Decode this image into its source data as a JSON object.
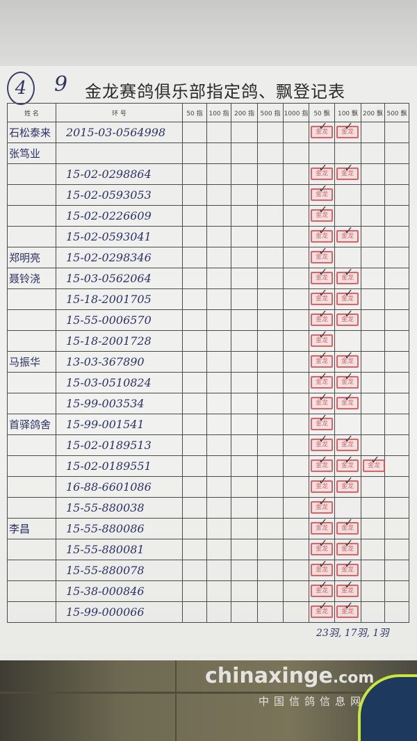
{
  "document": {
    "circled_number": "4",
    "page_number": "9",
    "title": "金龙赛鸽俱乐部指定鸽、飘登记表"
  },
  "table": {
    "headers": [
      "姓 名",
      "环 号",
      "50 指",
      "100 指",
      "200 指",
      "500 指",
      "1000 指",
      "50 飘",
      "100 飘",
      "200 飘",
      "500 飘"
    ],
    "stamp_text": "金龙",
    "stamp_color": "#e0474f",
    "rows": [
      {
        "name": "石松泰来",
        "ring": "2015-03-0564998",
        "stamps": [
          7,
          8
        ]
      },
      {
        "name": "张笃业",
        "ring": "",
        "stamps": []
      },
      {
        "name": "",
        "ring": "15-02-0298864",
        "stamps": [
          7,
          8
        ]
      },
      {
        "name": "",
        "ring": "15-02-0593053",
        "stamps": [
          7
        ]
      },
      {
        "name": "",
        "ring": "15-02-0226609",
        "stamps": [
          7
        ]
      },
      {
        "name": "",
        "ring": "15-02-0593041",
        "stamps": [
          7,
          8
        ]
      },
      {
        "name": "郑明亮",
        "ring": "15-02-0298346",
        "stamps": [
          7
        ]
      },
      {
        "name": "聂铃浇",
        "ring": "15-03-0562064",
        "stamps": [
          7,
          8
        ]
      },
      {
        "name": "",
        "ring": "15-18-2001705",
        "stamps": [
          7,
          8
        ]
      },
      {
        "name": "",
        "ring": "15-55-0006570",
        "stamps": [
          7,
          8
        ]
      },
      {
        "name": "",
        "ring": "15-18-2001728",
        "stamps": [
          7
        ]
      },
      {
        "name": "马振华",
        "ring": "13-03-367890",
        "stamps": [
          7,
          8
        ]
      },
      {
        "name": "",
        "ring": "15-03-0510824",
        "stamps": [
          7,
          8
        ]
      },
      {
        "name": "",
        "ring": "15-99-003534",
        "stamps": [
          7,
          8
        ]
      },
      {
        "name": "首驿鸽舍",
        "ring": "15-99-001541",
        "stamps": [
          7
        ]
      },
      {
        "name": "",
        "ring": "15-02-0189513",
        "stamps": [
          7,
          8
        ]
      },
      {
        "name": "",
        "ring": "15-02-0189551",
        "stamps": [
          7,
          8,
          9
        ]
      },
      {
        "name": "",
        "ring": "16-88-6601086",
        "stamps": [
          7,
          8
        ]
      },
      {
        "name": "",
        "ring": "15-55-880038",
        "stamps": [
          7
        ]
      },
      {
        "name": "李昌",
        "ring": "15-55-880086",
        "stamps": [
          7,
          8
        ]
      },
      {
        "name": "",
        "ring": "15-55-880081",
        "stamps": [
          7,
          8
        ]
      },
      {
        "name": "",
        "ring": "15-55-880078",
        "stamps": [
          7,
          8
        ]
      },
      {
        "name": "",
        "ring": "15-38-000846",
        "stamps": [
          7,
          8
        ]
      },
      {
        "name": "",
        "ring": "15-99-000066",
        "stamps": [
          7,
          8
        ]
      }
    ]
  },
  "footer_tally": "23羽, 17羽, 1羽",
  "watermark": {
    "site": "chinaxinge",
    "tld": ".com",
    "subtitle": "中国信鸽信息网"
  }
}
